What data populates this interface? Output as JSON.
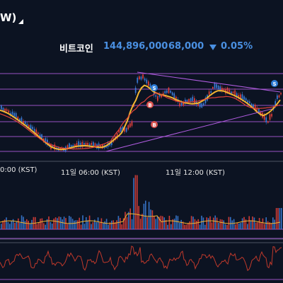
{
  "header": {
    "title": "W)"
  },
  "quote": {
    "name": "비트코인",
    "price": "144,896,000",
    "change": "68,000",
    "change_percent": "0.05%",
    "direction": "down",
    "down_color": "#4a90e2"
  },
  "chart": {
    "time_labels": [
      "0:00 (KST)",
      "11일 06:00 (KST)",
      "11일 12:00 (KST)"
    ],
    "markers": [
      {
        "label": "S",
        "color": "#2e7dd7"
      },
      {
        "label": "S",
        "color": "#2e7dd7"
      },
      {
        "label": "B",
        "color": "#d9534f"
      },
      {
        "label": "B",
        "color": "#d9534f"
      }
    ],
    "colors": {
      "up": "#e0403a",
      "down": "#3a7bd5",
      "ma_short": "#f2b632",
      "ma_long": "#e0403a",
      "trendline": "#b05ce0",
      "rsi_line": "#c0392b",
      "grid_line": "#b05ce0"
    }
  }
}
